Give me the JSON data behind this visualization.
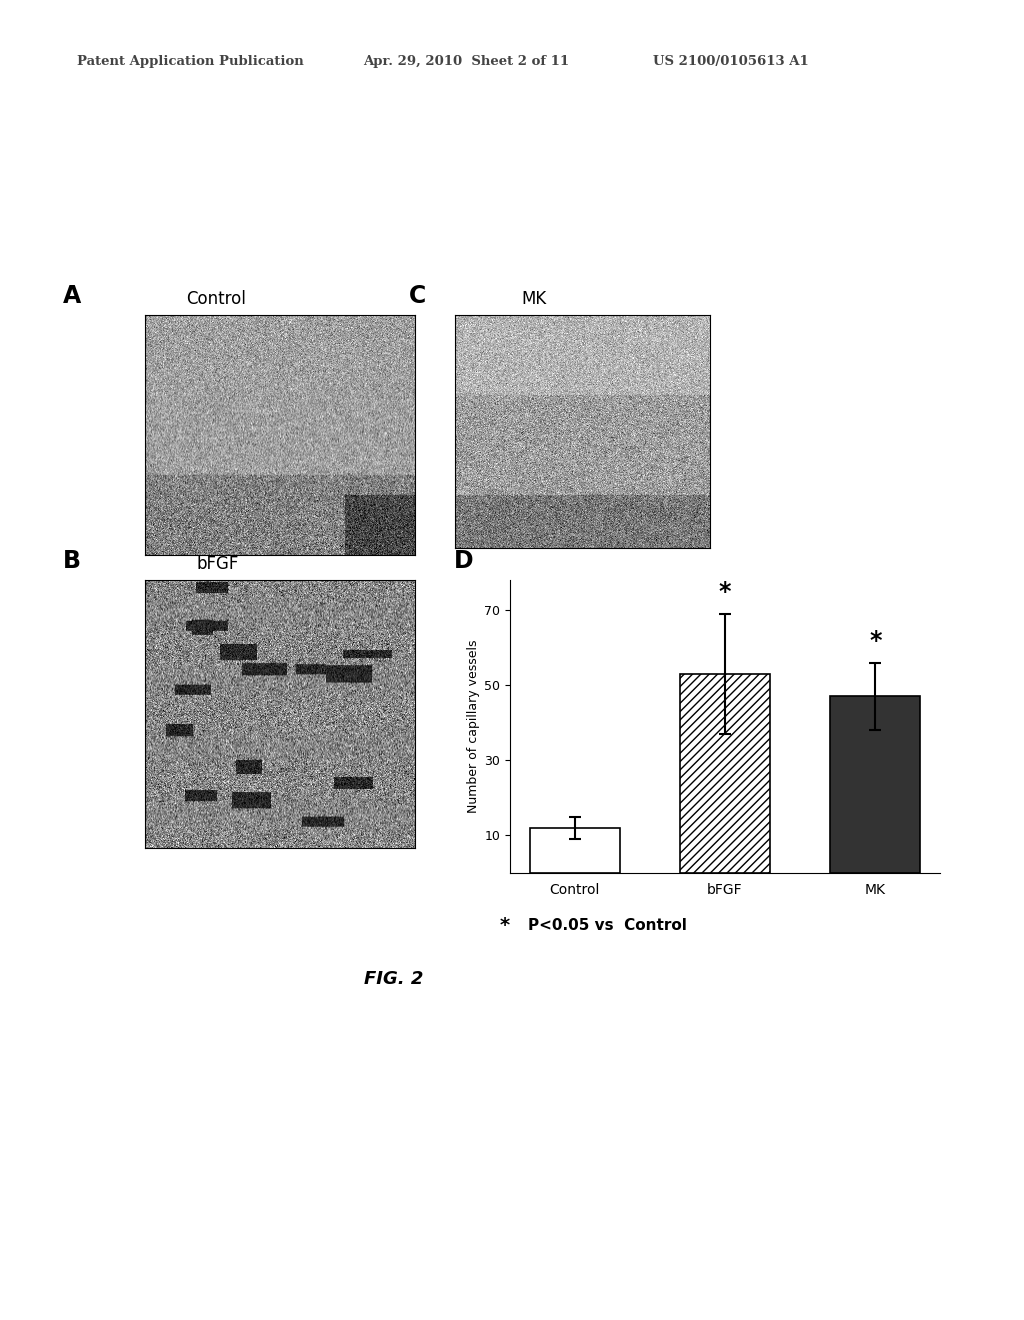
{
  "header_left": "Patent Application Publication",
  "header_mid": "Apr. 29, 2010  Sheet 2 of 11",
  "header_right": "US 2100/0105613 A1",
  "panel_A_label": "A",
  "panel_B_label": "B",
  "panel_C_label": "C",
  "panel_D_label": "D",
  "panel_A_title": "Control",
  "panel_B_title": "bFGF",
  "panel_C_title": "MK",
  "bar_categories": [
    "Control",
    "bFGF",
    "MK"
  ],
  "bar_values": [
    12,
    53,
    47
  ],
  "bar_errors": [
    3,
    16,
    9
  ],
  "bar_colors": [
    "white",
    "white",
    "#333333"
  ],
  "bar_hatches": [
    "",
    "////",
    ""
  ],
  "bar_edgecolors": [
    "black",
    "black",
    "black"
  ],
  "ylabel": "Number of capillary vessels",
  "yticks": [
    10,
    30,
    50,
    70
  ],
  "ymin": 0,
  "ymax": 78,
  "sig_asterisk": "*",
  "sig_text": "P<0.05 vs  Control",
  "fig_label": "FIG. 2",
  "background_color": "#ffffff",
  "asterisk_bar_indices": [
    1,
    2
  ],
  "header_color": "#444444"
}
